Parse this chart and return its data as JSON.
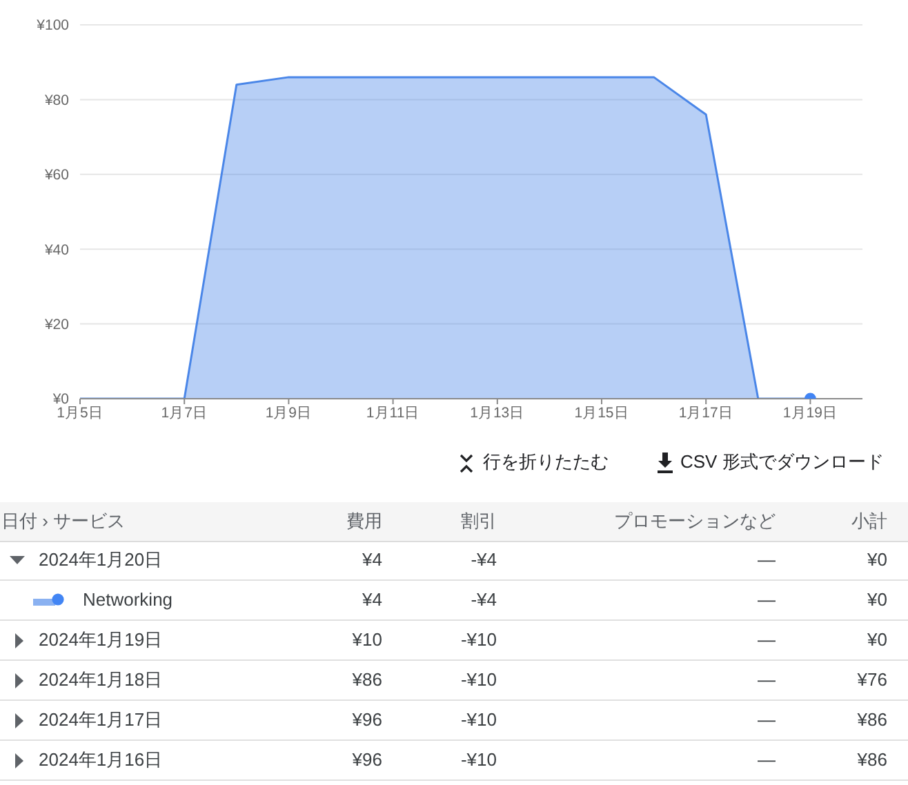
{
  "chart_data": [
    {
      "type": "area",
      "x": [
        "--01-05",
        "--01-06",
        "--01-07",
        "--01-08",
        "--01-09",
        "--01-10",
        "--01-11",
        "--01-12",
        "--01-13",
        "--01-14",
        "--01-15",
        "--01-16",
        "--01-17",
        "--01-18",
        "--01-19"
      ],
      "series": [
        {
          "type": "area",
          "color": "#4a86e8",
          "values": [
            0,
            0,
            0,
            84,
            86,
            86,
            86,
            86,
            86,
            86,
            86,
            86,
            76,
            0,
            0
          ]
        },
        {
          "type": "scatter",
          "color": "#4285f4",
          "marker": "circle",
          "x": [
            "--01-19"
          ],
          "values": [
            0
          ]
        }
      ],
      "xlim": [
        "--01-05",
        "--01-20"
      ],
      "xticks": [
        {
          "value": "--01-05",
          "label": "1月5日"
        },
        {
          "value": "--01-07",
          "label": "1月7日"
        },
        {
          "value": "--01-09",
          "label": "1月9日"
        },
        {
          "value": "--01-11",
          "label": "1月11日"
        },
        {
          "value": "--01-13",
          "label": "1月13日"
        },
        {
          "value": "--01-15",
          "label": "1月15日"
        },
        {
          "value": "--01-17",
          "label": "1月17日"
        },
        {
          "value": "--01-19",
          "label": "1月19日"
        }
      ],
      "ylim": [
        0,
        100
      ],
      "yticks": [
        {
          "value": 0,
          "label": "¥0"
        },
        {
          "value": 20,
          "label": "¥20"
        },
        {
          "value": 40,
          "label": "¥40"
        },
        {
          "value": 60,
          "label": "¥60"
        },
        {
          "value": 80,
          "label": "¥80"
        },
        {
          "value": 100,
          "label": "¥100"
        }
      ],
      "grid": "y"
    },
    {
      "type": "other",
      "annotations": [
        "行を折りたたむ",
        "CSV 形式でダウンロード"
      ],
      "categories": [
        "日付 › サービス",
        "費用",
        "割引",
        "プロモーションなど",
        "小計"
      ],
      "y_categories": [
        "2024年1月20日",
        "Networking",
        "2024年1月19日",
        "2024年1月18日",
        "2024年1月17日",
        "2024年1月16日"
      ],
      "cell_labels": [
        [
          "¥4",
          "-¥4",
          "—",
          "¥0"
        ],
        [
          "¥4",
          "-¥4",
          "—",
          "¥0"
        ],
        [
          "¥10",
          "-¥10",
          "—",
          "¥0"
        ],
        [
          "¥86",
          "-¥10",
          "—",
          "¥76"
        ],
        [
          "¥96",
          "-¥10",
          "—",
          "¥86"
        ],
        [
          "¥96",
          "-¥10",
          "—",
          "¥86"
        ]
      ]
    }
  ]
}
